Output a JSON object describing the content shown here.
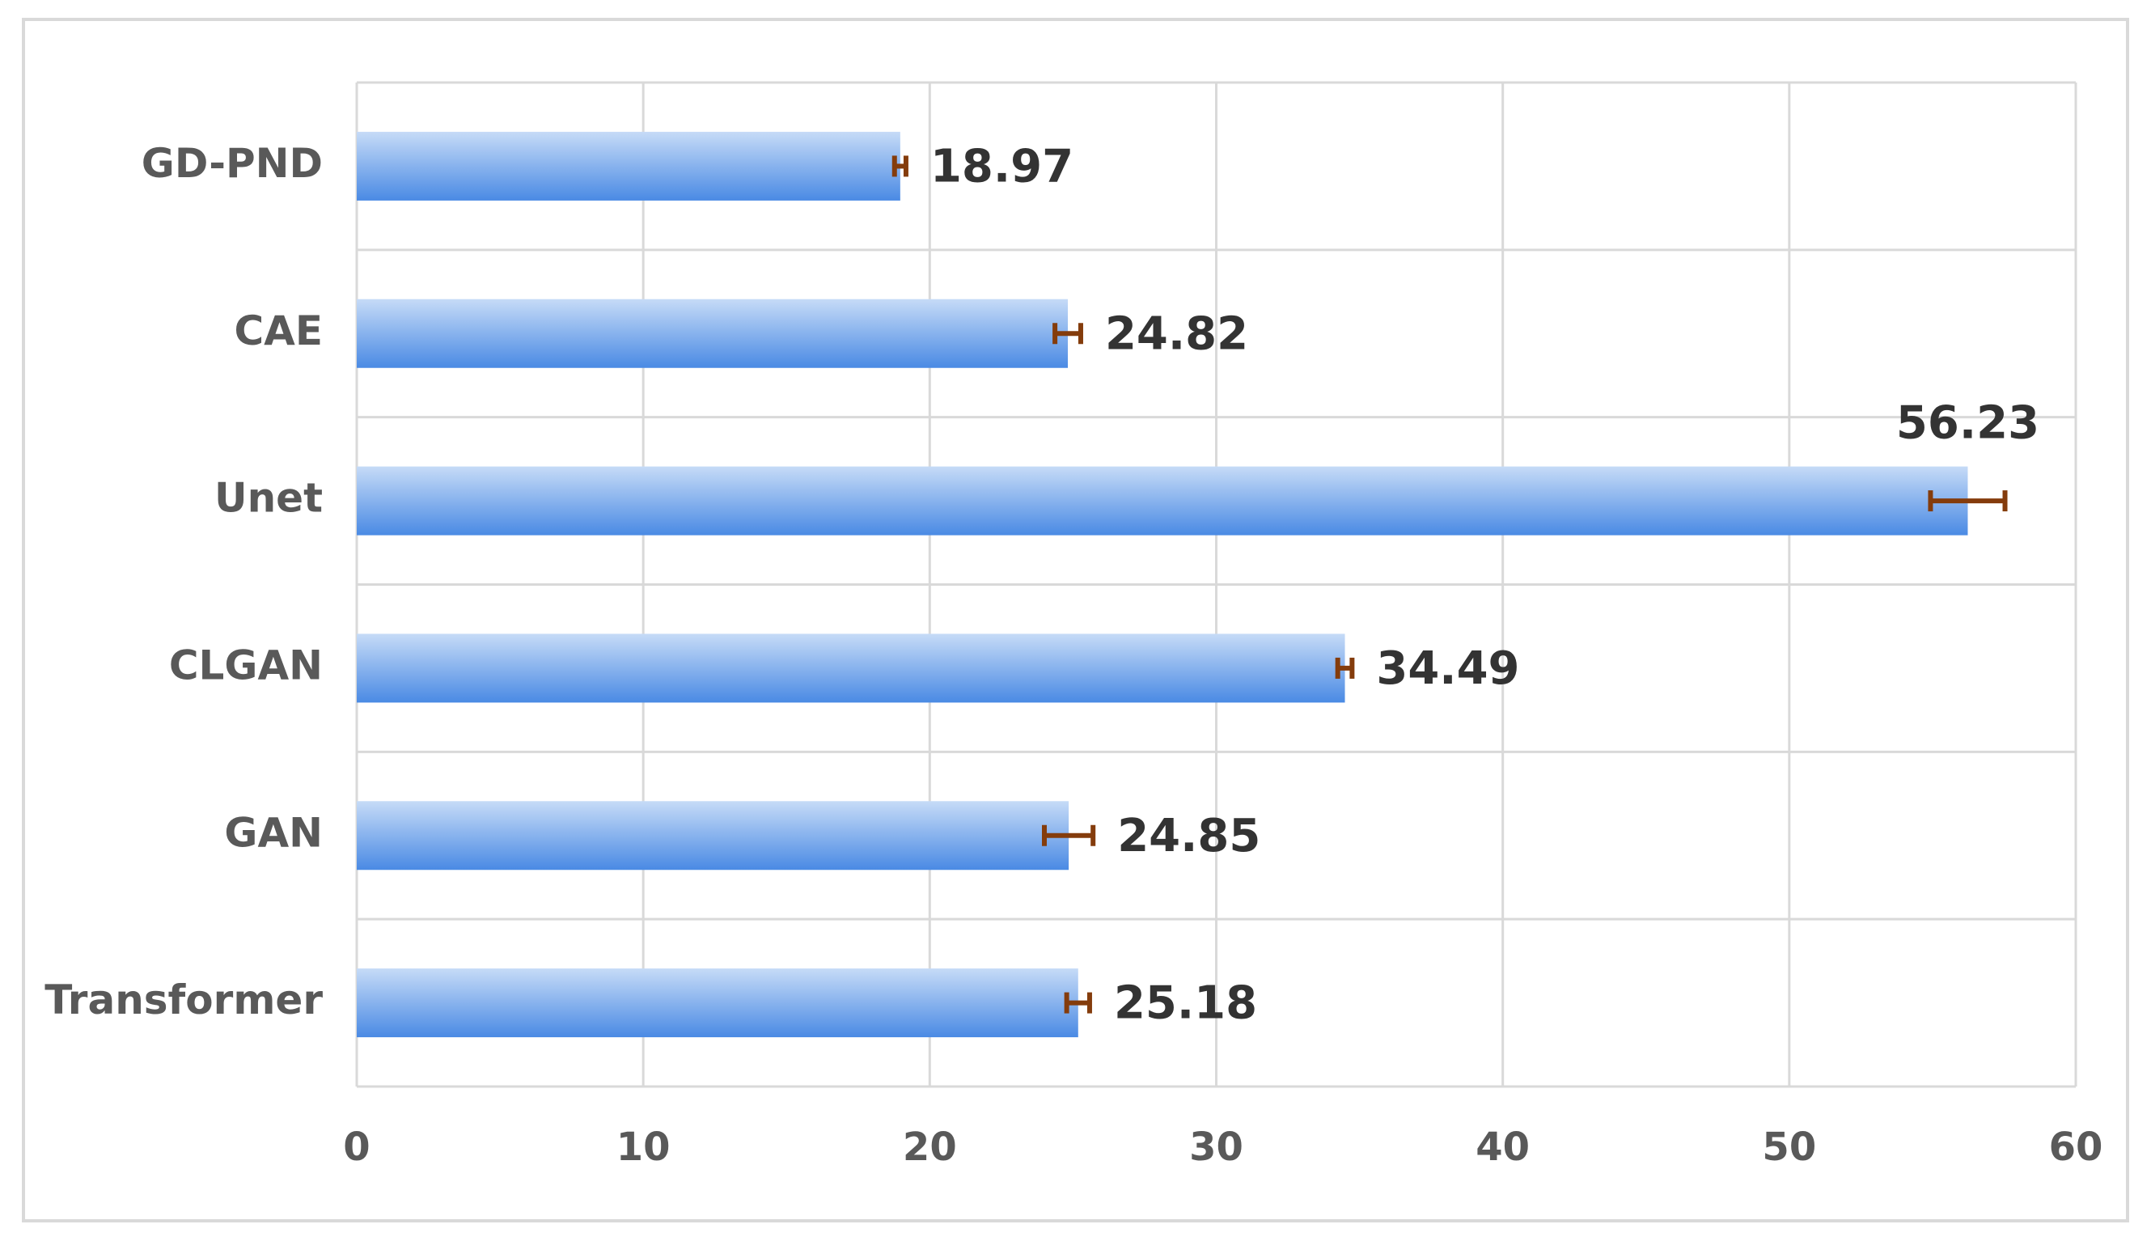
{
  "chart_data": {
    "type": "hbar",
    "categories": [
      "GD-PND",
      "CAE",
      "Unet",
      "CLGAN",
      "GAN",
      "Transformer"
    ],
    "values": [
      18.97,
      24.82,
      56.23,
      34.49,
      24.85,
      25.18
    ],
    "errors": [
      0.2,
      0.45,
      1.3,
      0.25,
      0.85,
      0.4
    ],
    "color": "#5b97e8",
    "error_color": "#843c0c",
    "xlim": [
      0,
      60
    ],
    "xticks": [
      0,
      10,
      20,
      30,
      40,
      50,
      60
    ],
    "grid": true
  }
}
